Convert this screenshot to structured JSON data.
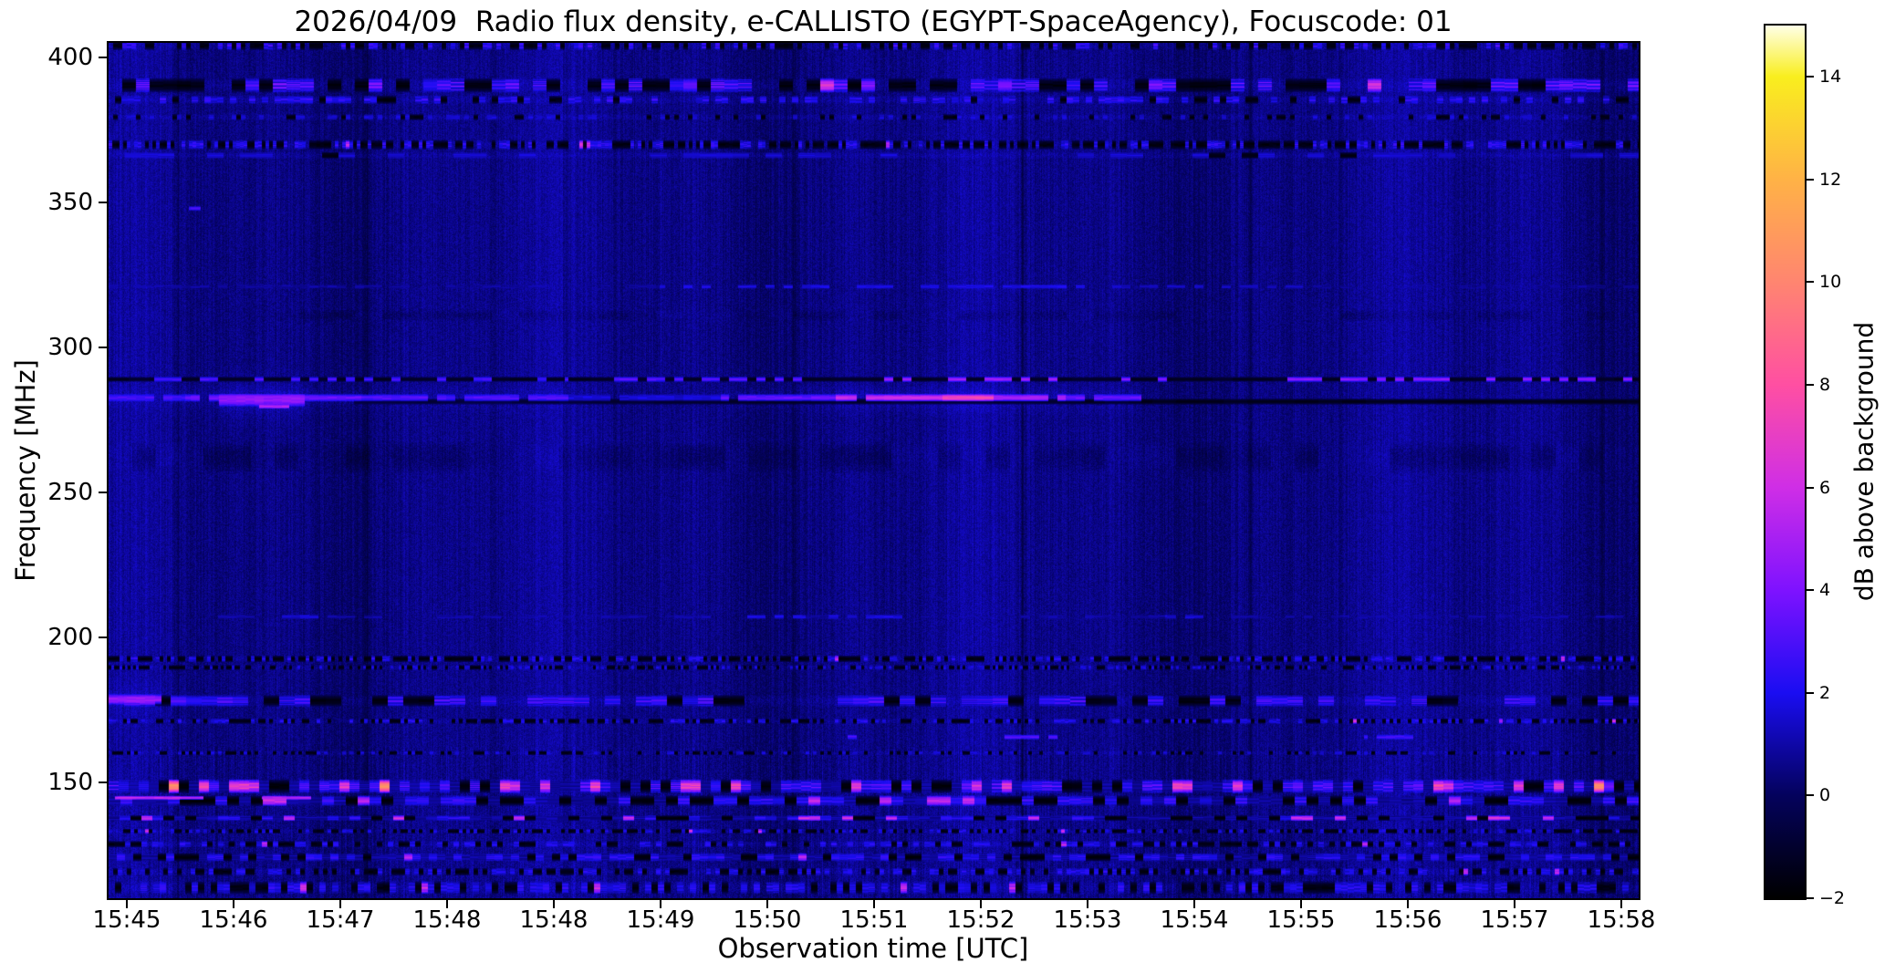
{
  "figure": {
    "title": "2026/04/09  Radio flux density, e-CALLISTO (EGYPT-SpaceAgency), Focuscode: 01",
    "x_axis": {
      "label": "Observation time [UTC]",
      "tick_labels": [
        "15:45",
        "15:46",
        "15:47",
        "15:48",
        "15:48",
        "15:49",
        "15:50",
        "15:51",
        "15:52",
        "15:53",
        "15:54",
        "15:55",
        "15:56",
        "15:57",
        "15:58"
      ]
    },
    "y_axis": {
      "label": "Frequency [MHz]",
      "tick_labels": [
        "400",
        "350",
        "300",
        "250",
        "200",
        "150"
      ],
      "tick_values": [
        400,
        350,
        300,
        250,
        200,
        150
      ]
    },
    "colorbar": {
      "label": "dB above background",
      "tick_labels": [
        "14",
        "12",
        "10",
        "8",
        "6",
        "4",
        "2",
        "0",
        "−2"
      ],
      "tick_values": [
        14,
        12,
        10,
        8,
        6,
        4,
        2,
        0,
        -2
      ],
      "min": -2,
      "max": 15
    }
  },
  "chart_data": {
    "type": "heatmap",
    "subtype": "radio-spectrogram",
    "title": "2026/04/09  Radio flux density, e-CALLISTO (EGYPT-SpaceAgency), Focuscode: 01",
    "xlabel": "Observation time [UTC]",
    "ylabel": "Frequency [MHz]",
    "colorbar_label": "dB above background",
    "x_ticks": [
      "15:45",
      "15:46",
      "15:47",
      "15:48",
      "15:48",
      "15:49",
      "15:50",
      "15:51",
      "15:52",
      "15:53",
      "15:54",
      "15:55",
      "15:56",
      "15:57",
      "15:58"
    ],
    "y_ticks": [
      400,
      350,
      300,
      250,
      200,
      150
    ],
    "colorbar_ticks": [
      14,
      12,
      10,
      8,
      6,
      4,
      2,
      0,
      -2
    ],
    "x_range_utc": [
      "15:45",
      "15:59"
    ],
    "y_range_mhz": [
      110,
      405
    ],
    "value_range_db": [
      -2,
      15
    ],
    "grid": false,
    "colormap": {
      "name": "gnuplot2",
      "stops": [
        [
          -2,
          "#000000"
        ],
        [
          0,
          "#04025c"
        ],
        [
          2,
          "#1a0df2"
        ],
        [
          4,
          "#7e12ff"
        ],
        [
          6,
          "#cf2ee6"
        ],
        [
          8,
          "#ff4fa2"
        ],
        [
          10,
          "#ff8570"
        ],
        [
          12,
          "#ffb246"
        ],
        [
          14,
          "#f9ee1e"
        ],
        [
          15,
          "#ffffe6"
        ]
      ]
    },
    "background": {
      "base_db": 0.55,
      "pixel_noise_db": 0.85,
      "column_noise_db": 0.6,
      "low_freq_extra_below_mhz": 162,
      "low_freq_extra_db": 0.5
    },
    "vertical_dark_lines": [
      {
        "t": 0.045,
        "depth": 0.5,
        "w": 3
      },
      {
        "t": 0.168,
        "depth": 0.6,
        "w": 3
      },
      {
        "t": 0.299,
        "depth": 0.5,
        "w": 3
      },
      {
        "t": 0.448,
        "depth": 0.45,
        "w": 3
      },
      {
        "t": 0.597,
        "depth": 0.9,
        "w": 2
      },
      {
        "t": 0.746,
        "depth": 0.5,
        "w": 3
      },
      {
        "t": 0.886,
        "depth": 0.45,
        "w": 3
      },
      {
        "t": 0.976,
        "depth": 0.6,
        "w": 2
      }
    ],
    "bands": [
      {
        "f": 404.2,
        "hw": 1.6,
        "kind": "speckle",
        "block": 5,
        "black": 0.4,
        "bright": 0.22,
        "hi": 3.4,
        "pink": 0.0
      },
      {
        "f": 390.5,
        "hw": 2.6,
        "kind": "speckle",
        "block": 15,
        "black": 0.36,
        "bright": 0.36,
        "hi": 4.6,
        "pink": 0.015
      },
      {
        "f": 385.5,
        "hw": 1.5,
        "kind": "speckle",
        "block": 7,
        "black": 0.12,
        "bright": 0.38,
        "hi": 3.0,
        "pink": 0.0
      },
      {
        "f": 379.5,
        "hw": 1.1,
        "kind": "speckle",
        "block": 5,
        "black": 0.18,
        "bright": 0.15,
        "hi": 2.0,
        "pink": 0.0
      },
      {
        "f": 370.0,
        "hw": 1.7,
        "kind": "speckle",
        "block": 4,
        "black": 0.45,
        "bright": 0.3,
        "hi": 3.0,
        "pink": 0.008
      },
      {
        "f": 366.3,
        "hw": 1.2,
        "kind": "speckle",
        "block": 18,
        "black": 0.04,
        "bright": 0.3,
        "hi": 1.9,
        "pink": 0.0
      },
      {
        "f": 348.0,
        "hw": 0.8,
        "kind": "line",
        "dash": 0,
        "glow": 0,
        "segments": [
          [
            0.052,
            0.06,
            2.8
          ]
        ]
      },
      {
        "f": 321.0,
        "hw": 0.8,
        "kind": "line",
        "dash": 0.4,
        "glow": 0,
        "segments": [
          [
            0.0,
            0.36,
            0.8
          ],
          [
            0.36,
            0.64,
            1.9
          ],
          [
            0.64,
            0.78,
            1.3
          ],
          [
            0.78,
            1.0,
            0.7
          ]
        ]
      },
      {
        "f": 311.0,
        "hw": 2.0,
        "kind": "wash",
        "block": 30,
        "amp": -0.55
      },
      {
        "f": 289.0,
        "hw": 0.9,
        "kind": "dark",
        "block": 22,
        "segments": [
          [
            0.0,
            1.0,
            -1.5
          ]
        ]
      },
      {
        "f": 289.0,
        "hw": 1.0,
        "kind": "line",
        "dash": 0.55,
        "glow": 0,
        "segments": [
          [
            0.02,
            0.3,
            3.0
          ],
          [
            0.33,
            0.47,
            3.3
          ],
          [
            0.5,
            0.625,
            4.9
          ],
          [
            0.65,
            0.7,
            4.0
          ],
          [
            0.77,
            1.0,
            4.5
          ]
        ]
      },
      {
        "f": 281.3,
        "hw": 1.1,
        "kind": "dark",
        "block": 26,
        "segments": [
          [
            0.16,
            0.4,
            -1.2
          ],
          [
            0.4,
            1.0,
            -1.7
          ]
        ]
      },
      {
        "f": 282.6,
        "hw": 1.4,
        "kind": "line",
        "dash": 0.07,
        "glow": 1.2,
        "segments": [
          [
            0.0,
            0.05,
            2.7
          ],
          [
            0.05,
            0.165,
            3.4
          ],
          [
            0.165,
            0.3,
            2.9
          ],
          [
            0.3,
            0.4,
            1.7
          ],
          [
            0.4,
            0.475,
            3.3
          ],
          [
            0.475,
            0.545,
            5.6
          ],
          [
            0.545,
            0.578,
            7.0
          ],
          [
            0.578,
            0.625,
            4.8
          ],
          [
            0.625,
            0.675,
            3.3
          ]
        ]
      },
      {
        "f": 281.8,
        "hw": 2.3,
        "kind": "line",
        "dash": 0,
        "glow": 1.5,
        "segments": [
          [
            0.072,
            0.128,
            4.0
          ]
        ]
      },
      {
        "f": 279.6,
        "hw": 0.8,
        "kind": "line",
        "dash": 0,
        "glow": 0,
        "segments": [
          [
            0.098,
            0.118,
            5.3
          ]
        ]
      },
      {
        "f": 262.0,
        "hw": 5.5,
        "kind": "wash",
        "block": 26,
        "amp": -0.75
      },
      {
        "f": 207.0,
        "hw": 0.75,
        "kind": "line",
        "dash": 0.45,
        "glow": 0,
        "segments": [
          [
            0.0,
            1.0,
            0.9
          ],
          [
            0.1,
            0.14,
            1.7
          ],
          [
            0.4,
            0.455,
            1.9
          ],
          [
            0.47,
            0.52,
            1.8
          ],
          [
            0.69,
            0.73,
            1.6
          ]
        ]
      },
      {
        "f": 192.5,
        "hw": 1.2,
        "kind": "speckle",
        "block": 4,
        "black": 0.5,
        "bright": 0.26,
        "hi": 2.7,
        "pink": 0.004
      },
      {
        "f": 189.5,
        "hw": 0.9,
        "kind": "speckle",
        "block": 3,
        "black": 0.42,
        "bright": 0.18,
        "hi": 2.2,
        "pink": 0.0
      },
      {
        "f": 178.0,
        "hw": 2.1,
        "kind": "speckle",
        "block": 17,
        "black": 0.22,
        "bright": 0.44,
        "hi": 3.6,
        "pink": 0.004
      },
      {
        "f": 178.5,
        "hw": 1.9,
        "kind": "line",
        "dash": 0,
        "glow": 1.0,
        "segments": [
          [
            0.0,
            0.034,
            4.3
          ]
        ]
      },
      {
        "f": 171.0,
        "hw": 1.0,
        "kind": "speckle",
        "block": 4,
        "black": 0.42,
        "bright": 0.25,
        "hi": 2.6,
        "pink": 0.003
      },
      {
        "f": 165.5,
        "hw": 0.9,
        "kind": "line",
        "dash": 0.35,
        "glow": 0,
        "segments": [
          [
            0.47,
            0.505,
            3.0
          ],
          [
            0.585,
            0.62,
            3.2
          ],
          [
            0.82,
            0.855,
            2.8
          ]
        ]
      },
      {
        "f": 160.0,
        "hw": 0.8,
        "kind": "speckle",
        "block": 4,
        "black": 0.28,
        "bright": 0.14,
        "hi": 2.0,
        "pink": 0.0
      },
      {
        "f": 148.5,
        "hw": 2.5,
        "kind": "strong",
        "block": 11,
        "black": 0.2,
        "bright": 0.38,
        "hi": 4.0,
        "pink": 0.17,
        "pink_lo": 5.5,
        "pink_hi": 8.2,
        "orange": 0.02
      },
      {
        "f": 143.5,
        "hw": 1.9,
        "kind": "strong",
        "block": 13,
        "black": 0.34,
        "bright": 0.3,
        "hi": 3.2,
        "pink": 0.05,
        "pink_lo": 5.0,
        "pink_hi": 6.5,
        "orange": 0.0
      },
      {
        "f": 144.5,
        "hw": 0.7,
        "kind": "line",
        "dash": 0,
        "glow": 0,
        "segments": [
          [
            0.004,
            0.062,
            5.8
          ],
          [
            0.1,
            0.132,
            5.5
          ]
        ]
      },
      {
        "f": 137.5,
        "hw": 1.0,
        "kind": "strong",
        "block": 12,
        "black": 0.22,
        "bright": 0.22,
        "hi": 2.8,
        "pink": 0.09,
        "pink_lo": 5.2,
        "pink_hi": 7.0,
        "orange": 0.0
      },
      {
        "f": 133.0,
        "hw": 0.9,
        "kind": "speckle",
        "block": 4,
        "black": 0.4,
        "bright": 0.22,
        "hi": 2.4,
        "pink": 0.02
      },
      {
        "f": 128.5,
        "hw": 1.2,
        "kind": "speckle",
        "block": 6,
        "black": 0.3,
        "bright": 0.3,
        "hi": 2.6,
        "pink": 0.015
      },
      {
        "f": 124.0,
        "hw": 1.5,
        "kind": "strong",
        "block": 9,
        "black": 0.28,
        "bright": 0.35,
        "hi": 2.8,
        "pink": 0.02,
        "pink_lo": 4.5,
        "pink_hi": 6.0,
        "orange": 0.004
      },
      {
        "f": 119.0,
        "hw": 1.4,
        "kind": "speckle",
        "block": 5,
        "black": 0.35,
        "bright": 0.3,
        "hi": 2.6,
        "pink": 0.01
      },
      {
        "f": 113.5,
        "hw": 2.3,
        "kind": "speckle",
        "block": 7,
        "black": 0.3,
        "bright": 0.35,
        "hi": 2.8,
        "pink": 0.012
      }
    ]
  }
}
